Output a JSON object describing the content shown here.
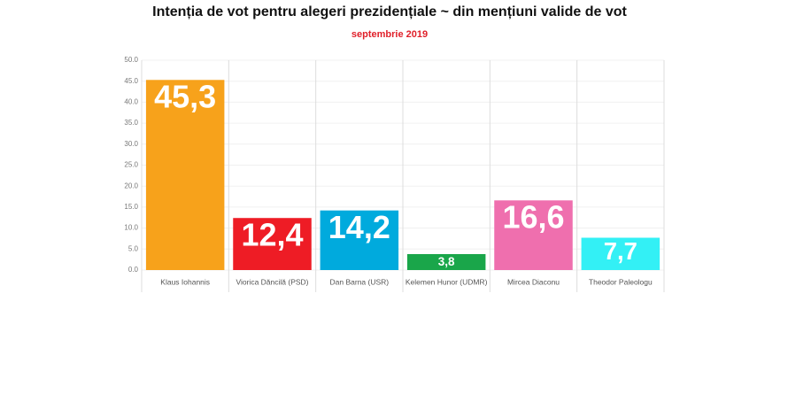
{
  "chart_data": {
    "type": "bar",
    "title": "Intenția de vot pentru alegeri prezidențiale ~ din mențiuni valide de vot",
    "subtitle": "septembrie 2019",
    "categories": [
      "Klaus Iohannis",
      "Viorica Dăncilă (PSD)",
      "Dan Barna (USR)",
      "Kelemen Hunor (UDMR)",
      "Mircea Diaconu",
      "Theodor Paleologu"
    ],
    "values": [
      45.3,
      12.4,
      14.2,
      3.8,
      16.6,
      7.7
    ],
    "value_labels": [
      "45,3",
      "12,4",
      "14,2",
      "3,8",
      "16,6",
      "7,7"
    ],
    "colors": [
      "#f7a21b",
      "#ee1c25",
      "#00aadd",
      "#1aa64a",
      "#ef6fae",
      "#33f0f5"
    ],
    "ylim": [
      0,
      50
    ],
    "yticks": [
      {
        "value": 0,
        "label": "0.0"
      },
      {
        "value": 5,
        "label": "5.0"
      },
      {
        "value": 10,
        "label": "10.0"
      },
      {
        "value": 15,
        "label": "15.0"
      },
      {
        "value": 20,
        "label": "20.0"
      },
      {
        "value": 25,
        "label": "25.0"
      },
      {
        "value": 30,
        "label": "30.0"
      },
      {
        "value": 35,
        "label": "35.0"
      },
      {
        "value": 40,
        "label": "40.0"
      },
      {
        "value": 45,
        "label": "45.0"
      },
      {
        "value": 50,
        "label": "50.0"
      }
    ],
    "grid": true
  }
}
